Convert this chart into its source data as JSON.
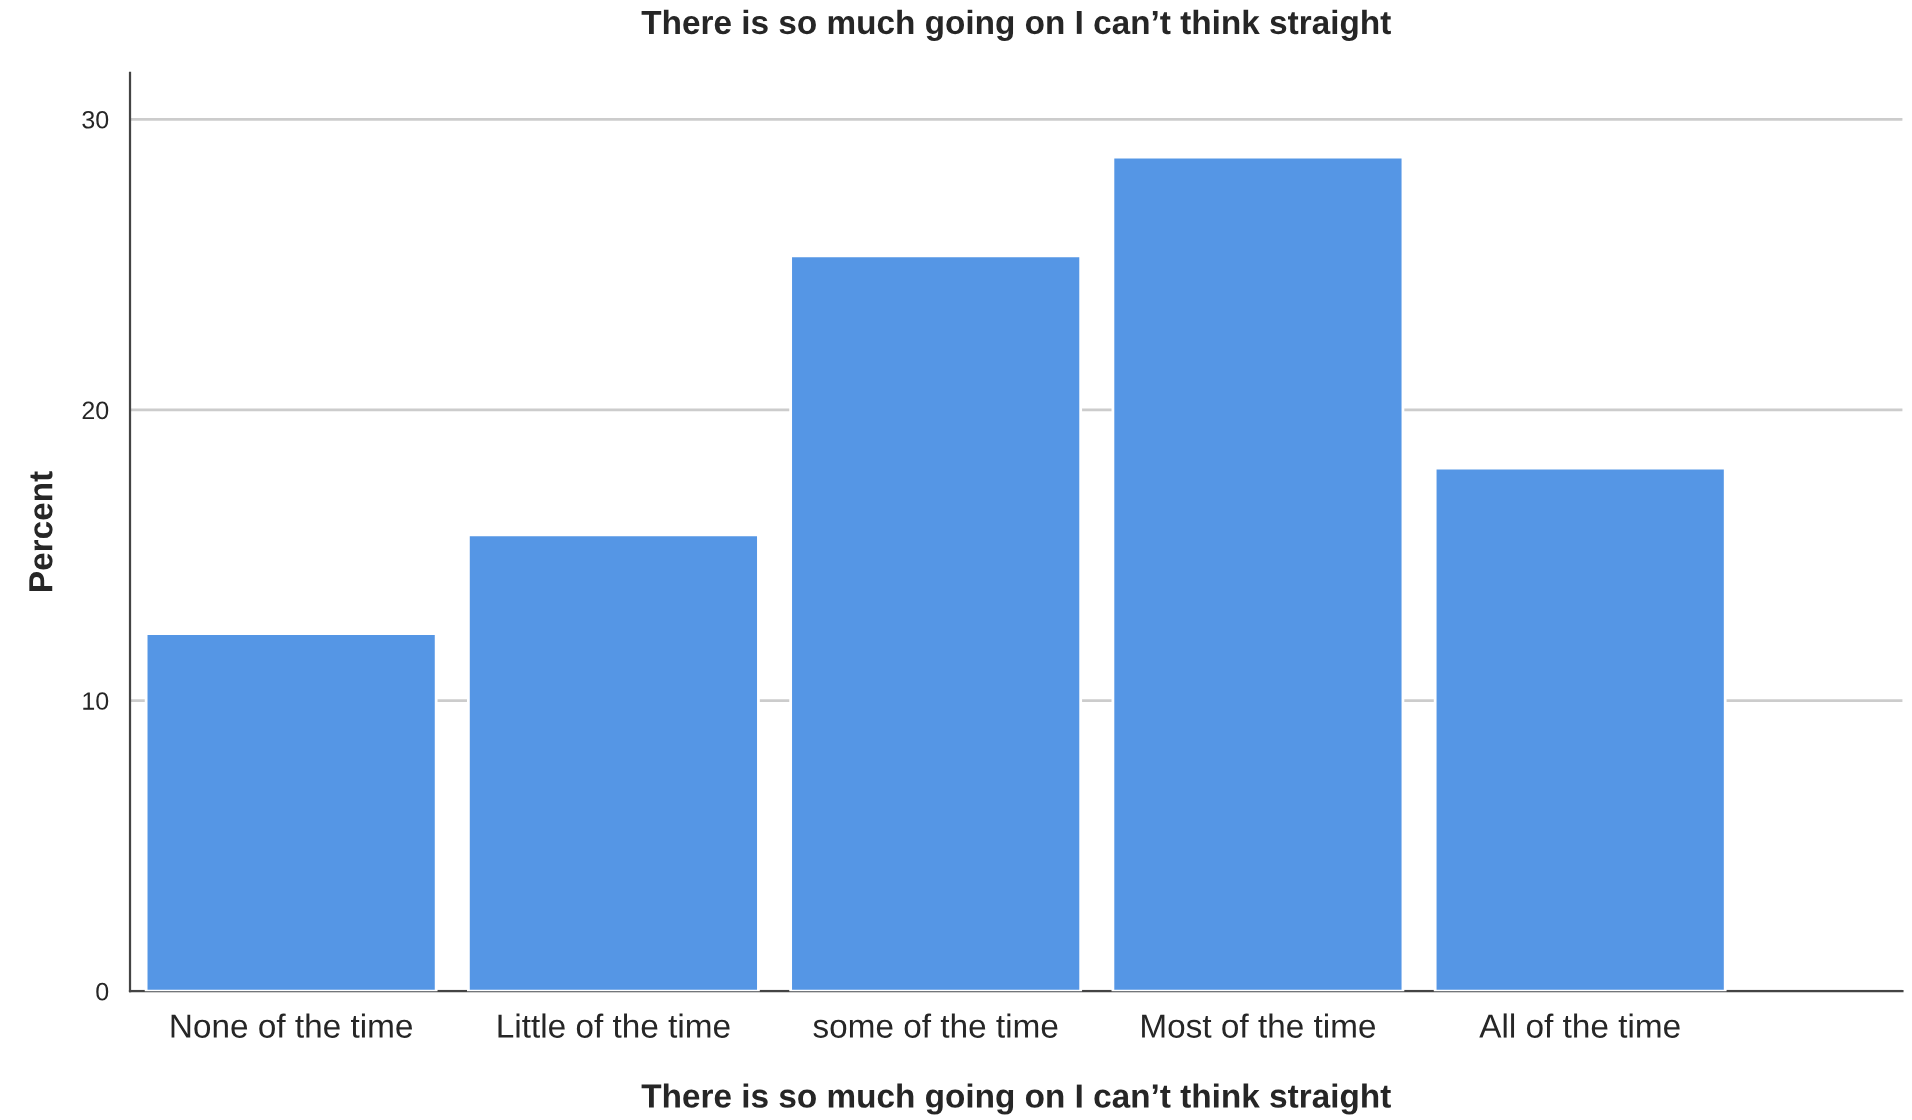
{
  "chart_data": {
    "type": "bar",
    "title": "There is so much going on I can’t think straight",
    "xlabel": "There is so much going on I can’t think straight",
    "ylabel": "Percent",
    "categories": [
      "None of the time",
      "Little of the time",
      "some of the time",
      "Most of the time",
      "All of the time"
    ],
    "values": [
      12.3,
      15.7,
      25.3,
      28.7,
      18.0
    ],
    "color": "#5596e5",
    "ylim": [
      0,
      31.6
    ],
    "yticks": [
      0,
      10,
      20,
      30
    ],
    "grid": "y"
  }
}
